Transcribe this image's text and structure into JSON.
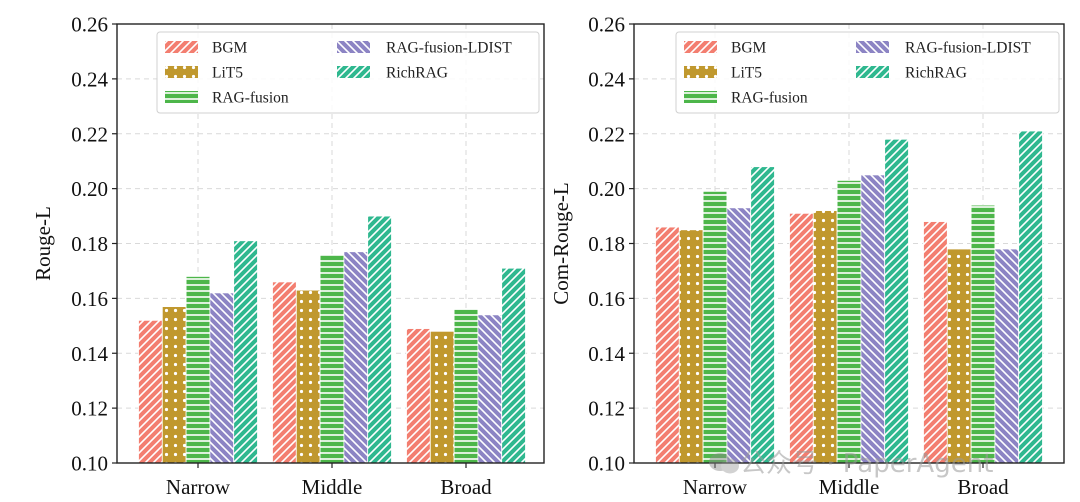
{
  "chart_data": [
    {
      "type": "bar",
      "title": "",
      "xlabel": "",
      "ylabel": "Rouge-L",
      "ylim": [
        0.1,
        0.26
      ],
      "yticks": [
        "0.10",
        "0.12",
        "0.14",
        "0.16",
        "0.18",
        "0.20",
        "0.22",
        "0.24",
        "0.26"
      ],
      "grid": true,
      "legend_position": "top-right",
      "categories": [
        "Narrow",
        "Middle",
        "Broad"
      ],
      "series": [
        {
          "name": "BGM",
          "values": [
            0.152,
            0.166,
            0.149
          ]
        },
        {
          "name": "LiT5",
          "values": [
            0.157,
            0.163,
            0.148
          ]
        },
        {
          "name": "RAG-fusion",
          "values": [
            0.168,
            0.176,
            0.156
          ]
        },
        {
          "name": "RAG-fusion-LDIST",
          "values": [
            0.162,
            0.177,
            0.154
          ]
        },
        {
          "name": "RichRAG",
          "values": [
            0.181,
            0.19,
            0.171
          ]
        }
      ]
    },
    {
      "type": "bar",
      "title": "",
      "xlabel": "",
      "ylabel": "Com-Rouge-L",
      "ylim": [
        0.1,
        0.26
      ],
      "yticks": [
        "0.10",
        "0.12",
        "0.14",
        "0.16",
        "0.18",
        "0.20",
        "0.22",
        "0.24",
        "0.26"
      ],
      "grid": true,
      "legend_position": "top-right",
      "categories": [
        "Narrow",
        "Middle",
        "Broad"
      ],
      "series": [
        {
          "name": "BGM",
          "values": [
            0.186,
            0.191,
            0.188
          ]
        },
        {
          "name": "LiT5",
          "values": [
            0.185,
            0.192,
            0.178
          ]
        },
        {
          "name": "RAG-fusion",
          "values": [
            0.199,
            0.203,
            0.194
          ]
        },
        {
          "name": "RAG-fusion-LDIST",
          "values": [
            0.193,
            0.205,
            0.178
          ]
        },
        {
          "name": "RichRAG",
          "values": [
            0.208,
            0.218,
            0.221
          ]
        }
      ]
    }
  ],
  "series_styles": [
    {
      "name": "BGM",
      "color": "#f37e70",
      "hatch": "diagonal-forward"
    },
    {
      "name": "LiT5",
      "color": "#c0982e",
      "hatch": "dots"
    },
    {
      "name": "RAG-fusion",
      "color": "#4db64a",
      "hatch": "horizontal"
    },
    {
      "name": "RAG-fusion-LDIST",
      "color": "#8c84c4",
      "hatch": "diagonal-back"
    },
    {
      "name": "RichRAG",
      "color": "#2fb88f",
      "hatch": "diagonal-forward"
    }
  ],
  "watermark": "公众号 · PaperAgent"
}
